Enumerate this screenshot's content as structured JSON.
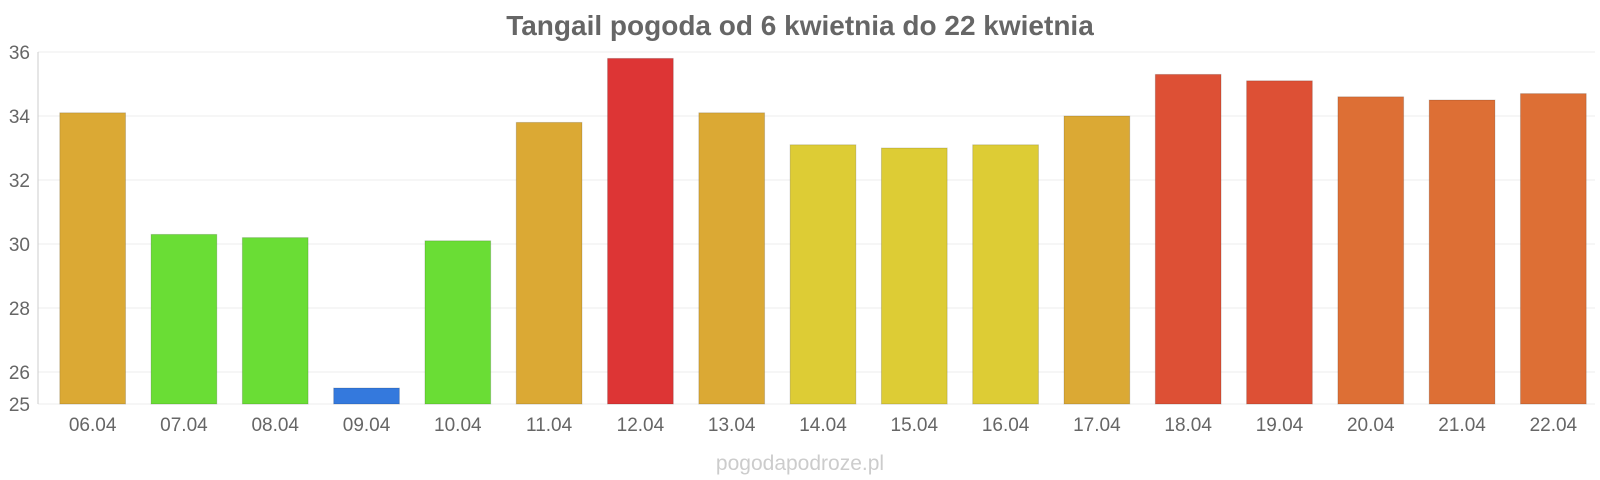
{
  "chart_data": {
    "type": "bar",
    "title": "Tangail pogoda od 6 kwietnia do 22 kwietnia",
    "xlabel": "",
    "ylabel": "",
    "categories": [
      "06.04",
      "07.04",
      "08.04",
      "09.04",
      "10.04",
      "11.04",
      "12.04",
      "13.04",
      "14.04",
      "15.04",
      "16.04",
      "17.04",
      "18.04",
      "19.04",
      "20.04",
      "21.04",
      "22.04"
    ],
    "values": [
      34.1,
      30.3,
      30.2,
      25.5,
      30.1,
      33.8,
      35.8,
      34.1,
      33.1,
      33.0,
      33.1,
      34.0,
      35.3,
      35.1,
      34.6,
      34.5,
      34.7
    ],
    "colors": [
      "#dba934",
      "#6add35",
      "#6add35",
      "#3479dd",
      "#6add35",
      "#dba934",
      "#dd3535",
      "#dba934",
      "#ddcc35",
      "#ddcc35",
      "#ddcc35",
      "#dba934",
      "#dd5035",
      "#dd5035",
      "#dd6f35",
      "#dd6f35",
      "#dd6f35"
    ],
    "ylim": [
      25,
      36
    ],
    "yticks": [
      25,
      26,
      28,
      30,
      32,
      34,
      36
    ],
    "grid": true,
    "legend": "none"
  },
  "watermark": "pogodapodroze.pl"
}
